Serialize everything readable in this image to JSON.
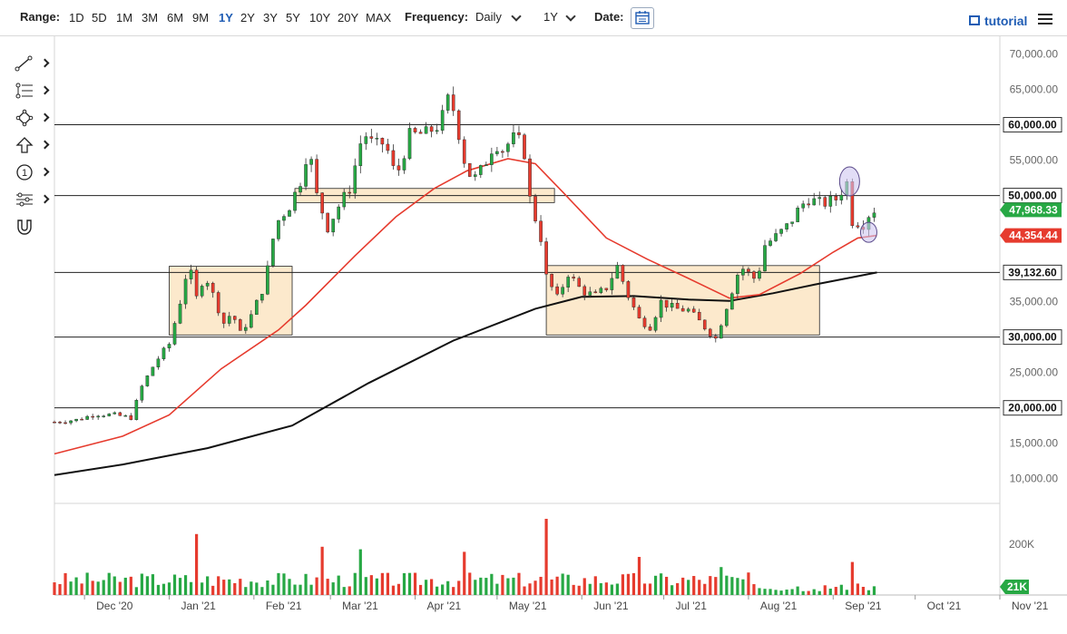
{
  "toolbar": {
    "range_label": "Range:",
    "ranges": [
      "1D",
      "5D",
      "1M",
      "3M",
      "6M",
      "9M",
      "1Y",
      "2Y",
      "3Y",
      "5Y",
      "10Y",
      "20Y",
      "MAX"
    ],
    "active_range": "1Y",
    "frequency_label": "Frequency:",
    "frequency_value": "Daily",
    "period_value": "1Y",
    "date_label": "Date:",
    "tutorial_label": "tutorial"
  },
  "drawing_tools": [
    "line-tool-icon",
    "fib-tool-icon",
    "shape-tool-icon",
    "arrow-tool-icon",
    "number-tool-icon",
    "settings-tool-icon",
    "magnet-tool-icon"
  ],
  "chart_data": {
    "type": "candlestick",
    "x_tick_labels": [
      "Dec '20",
      "Jan '21",
      "Feb '21",
      "Mar '21",
      "Apr '21",
      "May '21",
      "Jun '21",
      "Jul '21",
      "Aug '21",
      "Sep '21",
      "Oct '21",
      "Nov '21"
    ],
    "x_tick_dates": [
      "2020-12-01",
      "2021-01-01",
      "2021-02-01",
      "2021-03-01",
      "2021-04-01",
      "2021-05-01",
      "2021-06-01",
      "2021-07-01",
      "2021-08-01",
      "2021-09-01",
      "2021-10-01",
      "2021-11-01"
    ],
    "x_range": [
      "2020-11-20",
      "2021-11-01"
    ],
    "y_ticks": [
      10000,
      15000,
      20000,
      25000,
      30000,
      35000,
      40000,
      45000,
      50000,
      55000,
      60000,
      65000,
      70000
    ],
    "y_tick_labels": [
      "10,000.00",
      "15,000.00",
      "20,000.00",
      "25,000.00",
      "30,000.00",
      "35,000.00",
      "",
      "",
      "",
      "55,000.00",
      "",
      "65,000.00",
      "70,000.00"
    ],
    "ylim": [
      6500,
      72500
    ],
    "horizontal_lines": [
      {
        "value": 60000,
        "label": "60,000.00"
      },
      {
        "value": 50000,
        "label": "50,000.00"
      },
      {
        "value": 39132.6,
        "label": "39,132.60"
      },
      {
        "value": 30000,
        "label": "30,000.00"
      },
      {
        "value": 20000,
        "label": "20,000.00"
      }
    ],
    "price_tags": [
      {
        "value": 47968.33,
        "label": "47,968.33",
        "color": "#27a844"
      },
      {
        "value": 44354.44,
        "label": "44,354.44",
        "color": "#e63b2e"
      }
    ],
    "price_points": [
      [
        "2020-11-20",
        18000
      ],
      [
        "2020-11-28",
        18300
      ],
      [
        "2020-12-05",
        19100
      ],
      [
        "2020-12-12",
        19000
      ],
      [
        "2020-12-18",
        18600
      ],
      [
        "2020-12-22",
        23000
      ],
      [
        "2020-12-27",
        26500
      ],
      [
        "2021-01-01",
        29000
      ],
      [
        "2021-01-03",
        32000
      ],
      [
        "2021-01-06",
        36500
      ],
      [
        "2021-01-08",
        40500
      ],
      [
        "2021-01-11",
        35500
      ],
      [
        "2021-01-14",
        39000
      ],
      [
        "2021-01-17",
        36000
      ],
      [
        "2021-01-21",
        32000
      ],
      [
        "2021-01-24",
        33500
      ],
      [
        "2021-01-27",
        30500
      ],
      [
        "2021-01-31",
        33000
      ],
      [
        "2021-02-05",
        37500
      ],
      [
        "2021-02-09",
        46000
      ],
      [
        "2021-02-14",
        48500
      ],
      [
        "2021-02-18",
        52000
      ],
      [
        "2021-02-21",
        57000
      ],
      [
        "2021-02-24",
        50000
      ],
      [
        "2021-02-28",
        45500
      ],
      [
        "2021-03-04",
        48500
      ],
      [
        "2021-03-08",
        51000
      ],
      [
        "2021-03-13",
        59000
      ],
      [
        "2021-03-17",
        57000
      ],
      [
        "2021-03-21",
        57500
      ],
      [
        "2021-03-25",
        52500
      ],
      [
        "2021-03-30",
        58500
      ],
      [
        "2021-04-05",
        58800
      ],
      [
        "2021-04-10",
        60000
      ],
      [
        "2021-04-13",
        63500
      ],
      [
        "2021-04-16",
        61500
      ],
      [
        "2021-04-18",
        56000
      ],
      [
        "2021-04-22",
        52000
      ],
      [
        "2021-04-26",
        54000
      ],
      [
        "2021-04-30",
        57500
      ],
      [
        "2021-05-03",
        56500
      ],
      [
        "2021-05-08",
        58500
      ],
      [
        "2021-05-11",
        56000
      ],
      [
        "2021-05-13",
        49500
      ],
      [
        "2021-05-17",
        44000
      ],
      [
        "2021-05-19",
        38500
      ],
      [
        "2021-05-23",
        35500
      ],
      [
        "2021-05-27",
        39000
      ],
      [
        "2021-06-01",
        36500
      ],
      [
        "2021-06-06",
        35800
      ],
      [
        "2021-06-10",
        37000
      ],
      [
        "2021-06-14",
        40000
      ],
      [
        "2021-06-18",
        35800
      ],
      [
        "2021-06-22",
        32500
      ],
      [
        "2021-06-26",
        31500
      ],
      [
        "2021-06-30",
        35000
      ],
      [
        "2021-07-05",
        34000
      ],
      [
        "2021-07-10",
        33800
      ],
      [
        "2021-07-15",
        31800
      ],
      [
        "2021-07-20",
        29800
      ],
      [
        "2021-07-25",
        35500
      ],
      [
        "2021-07-29",
        40000
      ],
      [
        "2021-08-04",
        38000
      ],
      [
        "2021-08-07",
        43000
      ],
      [
        "2021-08-12",
        44500
      ],
      [
        "2021-08-16",
        46000
      ],
      [
        "2021-08-20",
        48500
      ],
      [
        "2021-08-23",
        49500
      ],
      [
        "2021-08-28",
        48800
      ],
      [
        "2021-09-02",
        49500
      ],
      [
        "2021-09-06",
        51800
      ],
      [
        "2021-09-07",
        46500
      ],
      [
        "2021-09-09",
        46300
      ],
      [
        "2021-09-12",
        46000
      ],
      [
        "2021-09-15",
        48000
      ],
      [
        "2021-09-17",
        47968
      ]
    ],
    "ma50_points": [
      [
        "2020-11-20",
        13500
      ],
      [
        "2020-12-15",
        16000
      ],
      [
        "2021-01-01",
        19000
      ],
      [
        "2021-01-20",
        25500
      ],
      [
        "2021-02-10",
        31000
      ],
      [
        "2021-02-20",
        34500
      ],
      [
        "2021-03-10",
        41500
      ],
      [
        "2021-03-25",
        47000
      ],
      [
        "2021-04-08",
        51000
      ],
      [
        "2021-04-20",
        53500
      ],
      [
        "2021-05-05",
        55200
      ],
      [
        "2021-05-15",
        54500
      ],
      [
        "2021-05-25",
        50500
      ],
      [
        "2021-06-10",
        44000
      ],
      [
        "2021-06-25",
        41000
      ],
      [
        "2021-07-10",
        38300
      ],
      [
        "2021-07-25",
        35500
      ],
      [
        "2021-08-05",
        36000
      ],
      [
        "2021-08-20",
        39000
      ],
      [
        "2021-09-01",
        42000
      ],
      [
        "2021-09-10",
        44000
      ],
      [
        "2021-09-17",
        44354
      ]
    ],
    "ma200_points": [
      [
        "2020-11-20",
        10500
      ],
      [
        "2020-12-15",
        12000
      ],
      [
        "2021-01-15",
        14300
      ],
      [
        "2021-02-15",
        17500
      ],
      [
        "2021-03-15",
        23500
      ],
      [
        "2021-04-15",
        29500
      ],
      [
        "2021-05-15",
        34000
      ],
      [
        "2021-06-01",
        35700
      ],
      [
        "2021-06-20",
        35800
      ],
      [
        "2021-07-10",
        35300
      ],
      [
        "2021-07-25",
        35100
      ],
      [
        "2021-08-10",
        36200
      ],
      [
        "2021-08-25",
        37400
      ],
      [
        "2021-09-10",
        38600
      ],
      [
        "2021-09-17",
        39132
      ]
    ],
    "boxes": [
      {
        "x0": "2021-01-01",
        "x1": "2021-02-15",
        "y0": 30300,
        "y1": 40000
      },
      {
        "x0": "2021-02-16",
        "x1": "2021-05-22",
        "y0": 49000,
        "y1": 51000
      },
      {
        "x0": "2021-05-19",
        "x1": "2021-08-27",
        "y0": 30300,
        "y1": 40100
      }
    ],
    "circles": [
      {
        "x": "2021-09-07",
        "y": 52000
      },
      {
        "x": "2021-09-14",
        "y": 44800
      }
    ],
    "volume": {
      "y_tick_label": "200K",
      "y_tick_value": 200000,
      "ylim": [
        0,
        350000
      ],
      "last_label": "21K",
      "spikes": [
        {
          "x": "2021-01-11",
          "value": 240000
        },
        {
          "x": "2021-02-26",
          "value": 190000
        },
        {
          "x": "2021-03-11",
          "value": 180000
        },
        {
          "x": "2021-04-18",
          "value": 170000
        },
        {
          "x": "2021-05-19",
          "value": 300000
        },
        {
          "x": "2021-06-22",
          "value": 150000
        },
        {
          "x": "2021-07-22",
          "value": 110000
        },
        {
          "x": "2021-09-07",
          "value": 130000
        }
      ]
    }
  }
}
